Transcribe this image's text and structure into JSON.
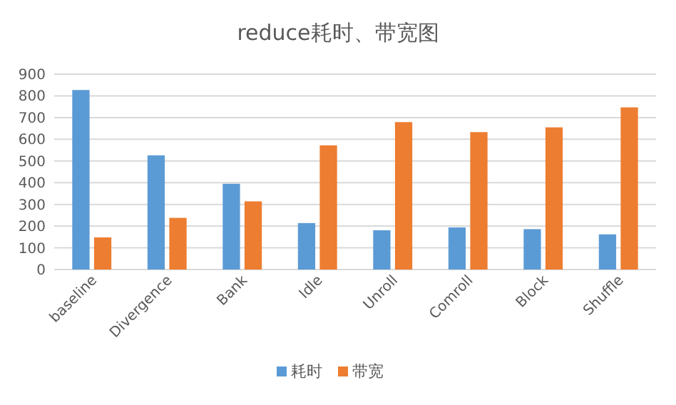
{
  "chart_data": {
    "type": "bar",
    "title": "reduce耗时、带宽图",
    "categories": [
      "baseline",
      "Divergence",
      "Bank",
      "Idle",
      "Unroll",
      "Comroll",
      "Block",
      "Shuffle"
    ],
    "series": [
      {
        "name": "耗时",
        "color": "#5b9bd5",
        "values": [
          827,
          526,
          395,
          214,
          181,
          194,
          186,
          162
        ]
      },
      {
        "name": "带宽",
        "color": "#ed7d31",
        "values": [
          148,
          238,
          314,
          572,
          679,
          633,
          655,
          747
        ]
      }
    ],
    "ylim": [
      0,
      900
    ],
    "yticks": [
      0,
      100,
      200,
      300,
      400,
      500,
      600,
      700,
      800,
      900
    ],
    "grid": "y",
    "legend": "bottom"
  }
}
